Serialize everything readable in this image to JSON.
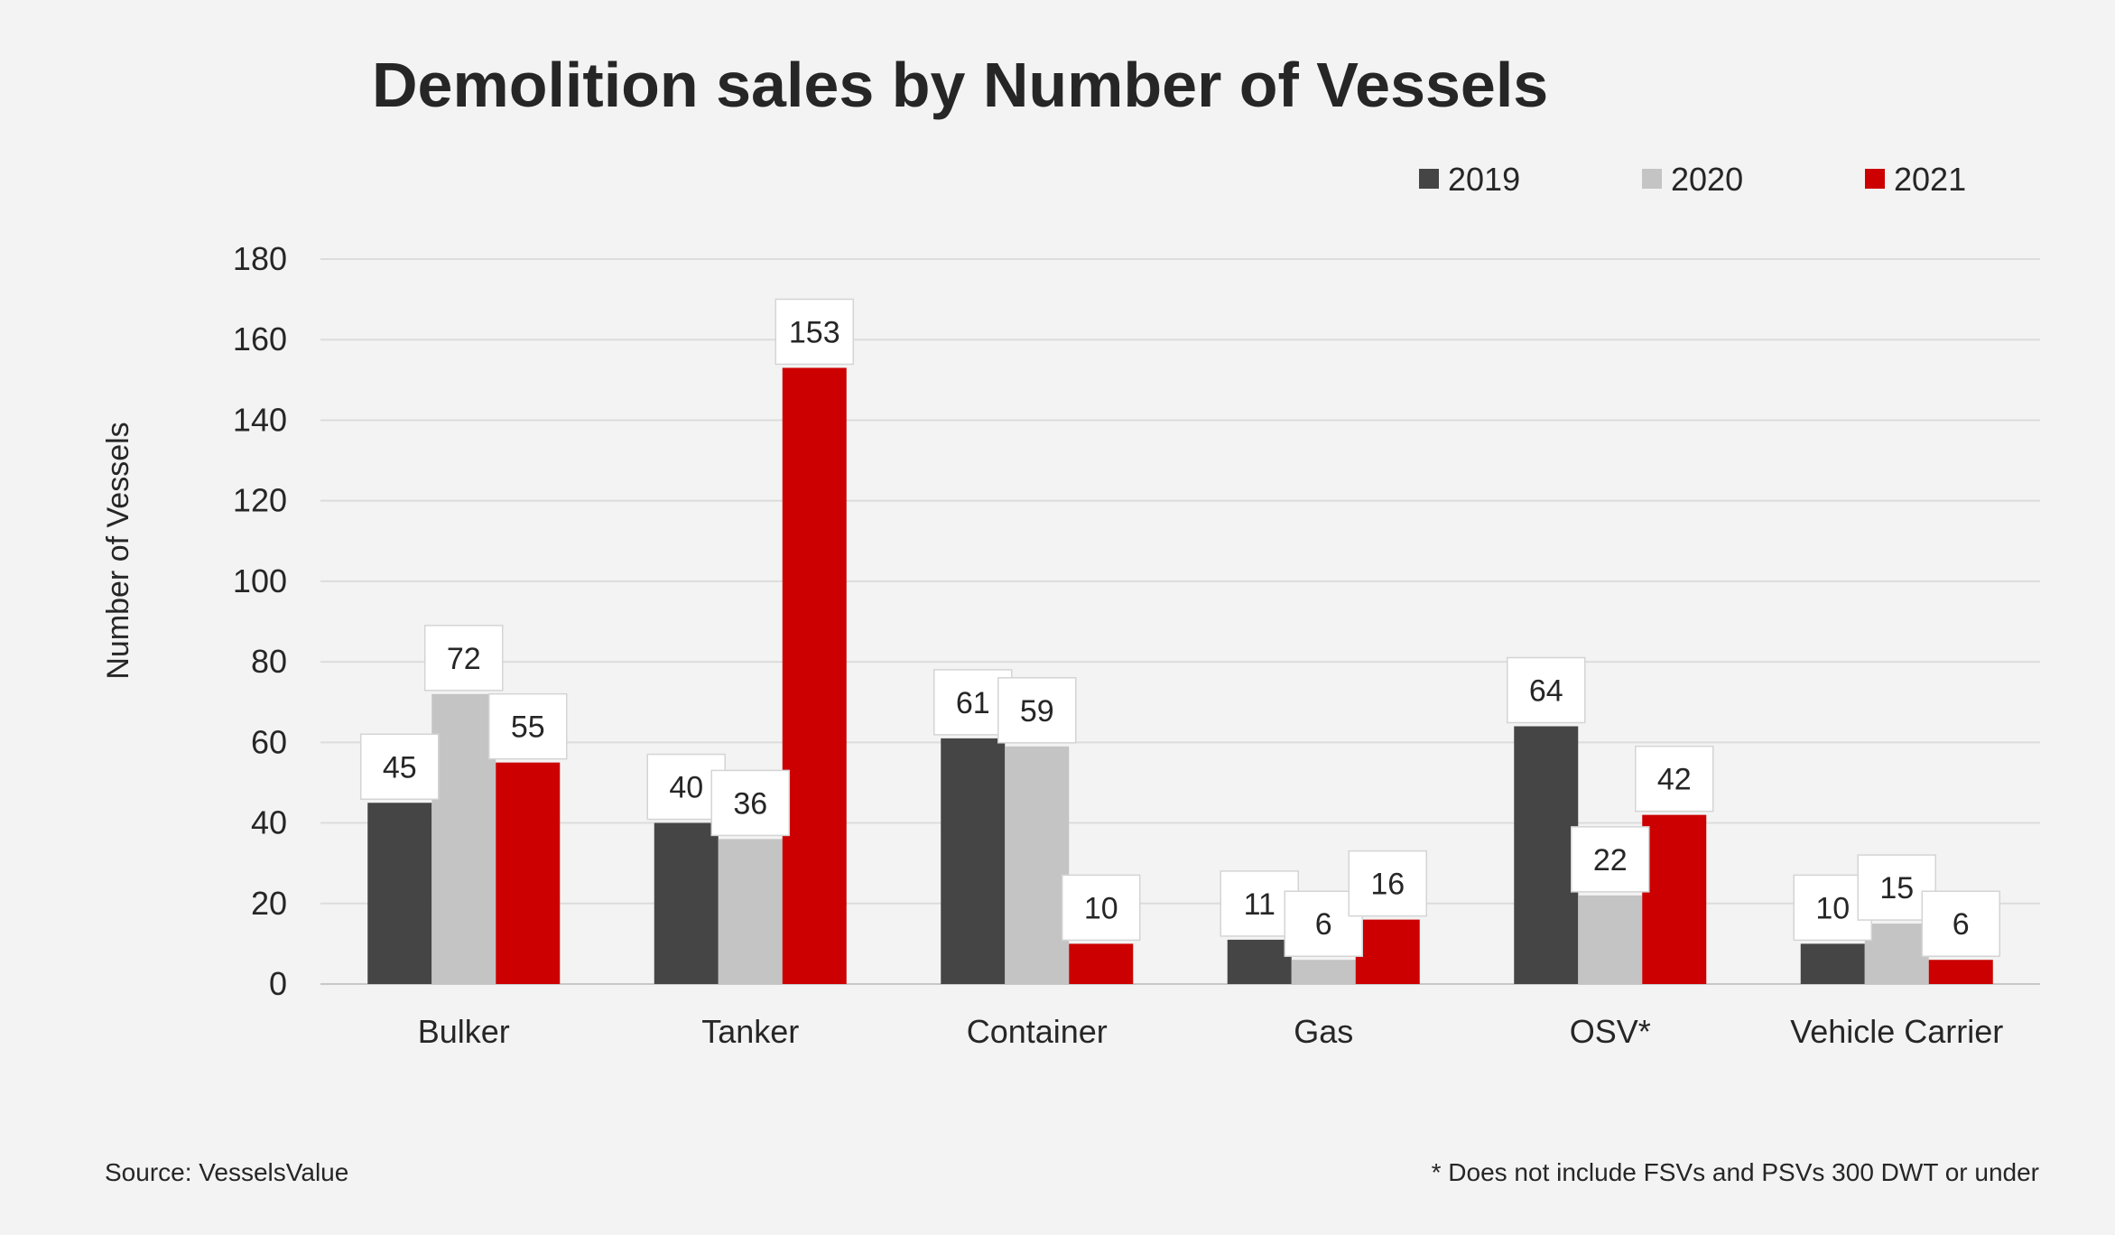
{
  "chart_data": {
    "type": "bar",
    "title": "Demolition sales by Number of Vessels",
    "ylabel": "Number of Vessels",
    "xlabel": "",
    "ylim": [
      0,
      180
    ],
    "yticks": [
      0,
      20,
      40,
      60,
      80,
      100,
      120,
      140,
      160,
      180
    ],
    "grid": true,
    "legend_position": "top-right",
    "categories": [
      "Bulker",
      "Tanker",
      "Container",
      "Gas",
      "OSV*",
      "Vehicle Carrier"
    ],
    "series": [
      {
        "name": "2019",
        "color": "#454545",
        "values": [
          45,
          40,
          61,
          11,
          64,
          10
        ]
      },
      {
        "name": "2020",
        "color": "#c4c4c4",
        "values": [
          72,
          36,
          59,
          6,
          22,
          15
        ]
      },
      {
        "name": "2021",
        "color": "#cc0000",
        "values": [
          55,
          153,
          10,
          16,
          42,
          6
        ]
      }
    ],
    "source": "Source: VesselsValue",
    "footnote": "* Does not include FSVs and PSVs 300 DWT or under"
  }
}
